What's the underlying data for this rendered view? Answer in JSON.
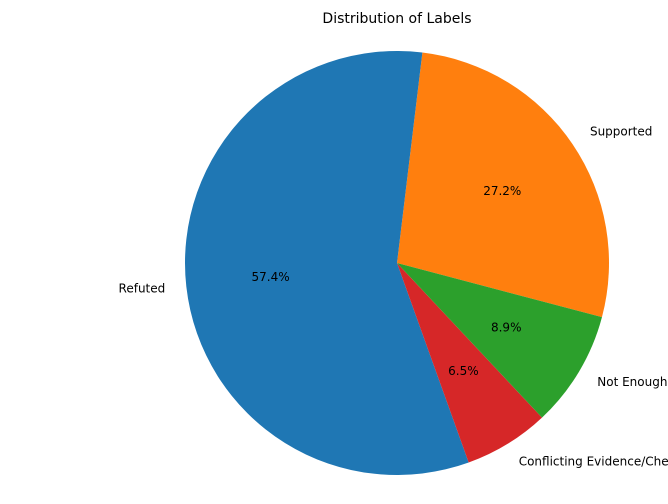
{
  "chart_data": {
    "type": "pie",
    "title": "Distribution of Labels",
    "slices": [
      {
        "label": "Supported",
        "value": 27.2,
        "pct_label": "27.2%",
        "color": "#ff7f0e"
      },
      {
        "label": "Refuted",
        "value": 57.4,
        "pct_label": "57.4%",
        "color": "#1f77b4"
      },
      {
        "label": "Conflicting Evidence/Cherrypicking",
        "value": 6.5,
        "pct_label": "6.5%",
        "color": "#d62728"
      },
      {
        "label": "Not Enough Evidence",
        "value": 8.9,
        "pct_label": "8.9%",
        "color": "#2ca02c"
      }
    ]
  }
}
